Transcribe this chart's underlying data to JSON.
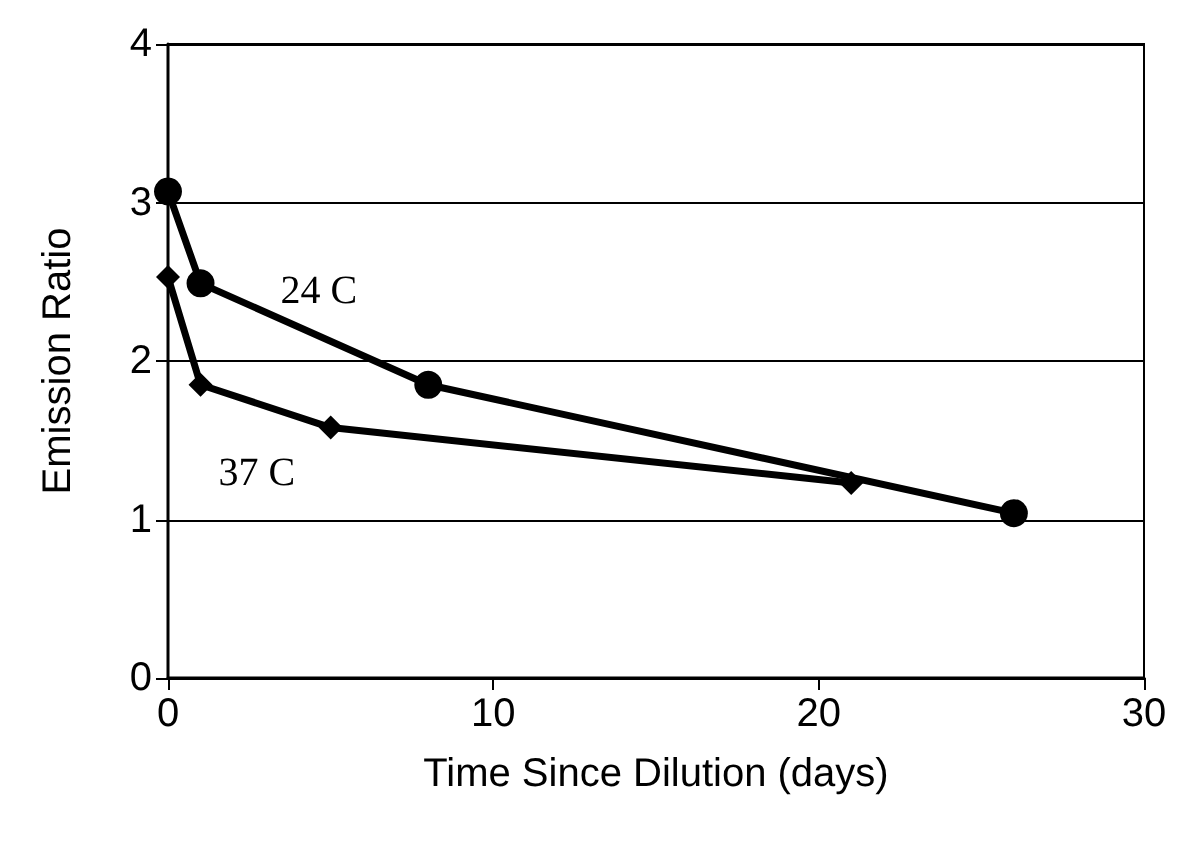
{
  "chart_data": {
    "type": "line",
    "xlabel": "Time Since Dilution (days)",
    "ylabel": "Emission Ratio",
    "series": [
      {
        "name": "24 C",
        "color": "#000000",
        "marker": "circle",
        "x": [
          0,
          1,
          8,
          26
        ],
        "values": [
          3.07,
          2.49,
          1.85,
          1.04
        ]
      },
      {
        "name": "37 C",
        "color": "#000000",
        "marker": "diamond",
        "x": [
          0,
          1,
          5,
          21
        ],
        "values": [
          2.53,
          1.85,
          1.58,
          1.23
        ]
      }
    ],
    "xlim": [
      0,
      30
    ],
    "xticks": [
      0,
      10,
      20,
      30
    ],
    "ylim": [
      0,
      4
    ],
    "yticks": [
      0,
      1,
      2,
      3,
      4
    ],
    "grid": "y",
    "legend": false,
    "line_style": "solid"
  }
}
